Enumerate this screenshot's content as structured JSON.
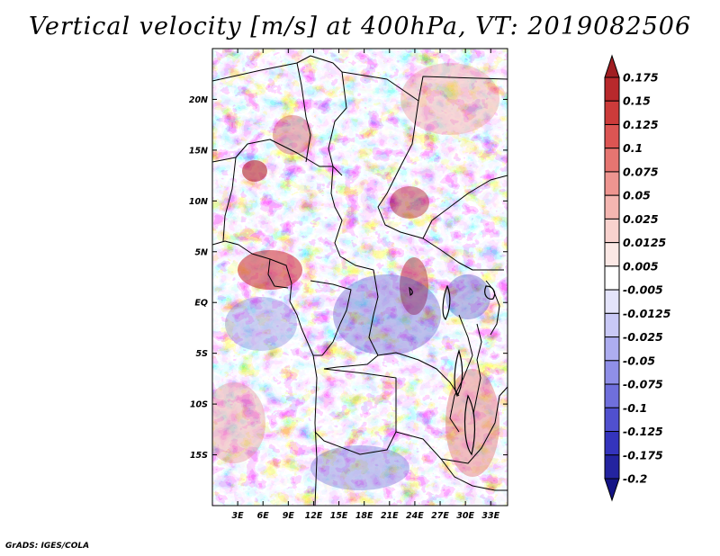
{
  "title": "Vertical velocity [m/s] at 400hPa, VT: 2019082506",
  "credit": "GrADS: IGES/COLA",
  "map": {
    "lat_labels": [
      "20N",
      "15N",
      "10N",
      "5N",
      "EQ",
      "5S",
      "10S",
      "15S"
    ],
    "lat_values": [
      20,
      15,
      10,
      5,
      0,
      -5,
      -10,
      -15
    ],
    "lon_labels": [
      "3E",
      "6E",
      "9E",
      "12E",
      "15E",
      "18E",
      "21E",
      "24E",
      "27E",
      "30E",
      "33E"
    ],
    "lon_values": [
      3,
      6,
      9,
      12,
      15,
      18,
      21,
      24,
      27,
      30,
      33
    ],
    "lon_range": [
      0,
      35
    ],
    "lat_range": [
      -20,
      25
    ]
  },
  "colorbar": {
    "labels": [
      "0.175",
      "0.15",
      "0.125",
      "0.1",
      "0.075",
      "0.05",
      "0.025",
      "0.0125",
      "0.005",
      "-0.005",
      "-0.0125",
      "-0.025",
      "-0.05",
      "-0.075",
      "-0.1",
      "-0.125",
      "-0.175",
      "-0.2"
    ],
    "colors": [
      "#a01e22",
      "#b8292c",
      "#cc3b3a",
      "#dc5553",
      "#e67571",
      "#ee9590",
      "#f4b6b1",
      "#f8d2ce",
      "#fbe8e5",
      "#ffffff",
      "#e4e4fb",
      "#c9c9f6",
      "#adadf0",
      "#8f8fe8",
      "#6f6fdc",
      "#5050cf",
      "#3434bd",
      "#2424a0",
      "#141485"
    ]
  }
}
